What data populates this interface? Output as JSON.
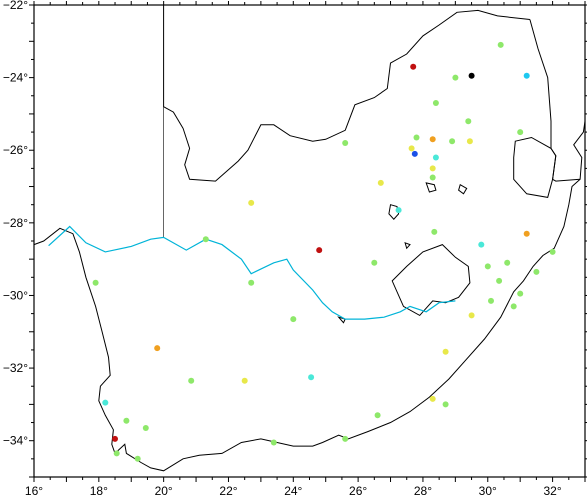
{
  "map": {
    "lon_range": [
      16,
      33
    ],
    "lat_range": [
      -35,
      -22
    ],
    "x_ticks": [
      {
        "value": 16,
        "label": "16°"
      },
      {
        "value": 18,
        "label": "18°"
      },
      {
        "value": 20,
        "label": "20°"
      },
      {
        "value": 22,
        "label": "22°"
      },
      {
        "value": 24,
        "label": "24°"
      },
      {
        "value": 26,
        "label": "26°"
      },
      {
        "value": 28,
        "label": "28°"
      },
      {
        "value": 30,
        "label": "30°"
      },
      {
        "value": 32,
        "label": "32°"
      }
    ],
    "y_ticks": [
      {
        "value": -22,
        "label": "−22°"
      },
      {
        "value": -24,
        "label": "−24°"
      },
      {
        "value": -26,
        "label": "−26°"
      },
      {
        "value": -28,
        "label": "−28°"
      },
      {
        "value": -30,
        "label": "−30°"
      },
      {
        "value": -32,
        "label": "−32°"
      },
      {
        "value": -34,
        "label": "−34°"
      }
    ],
    "colors": {
      "yellow": "#e8e84a",
      "lightgreen": "#8ee86a",
      "cyan": "#4ae8d8",
      "skyblue": "#1ec8f0",
      "orange": "#f0a020",
      "red": "#c01010",
      "blue": "#1a50e8",
      "black": "#000000",
      "river": "#00b4d8"
    },
    "stations": [
      {
        "lon": 27.7,
        "lat": -23.7,
        "c": "red"
      },
      {
        "lon": 29.5,
        "lat": -23.95,
        "c": "black"
      },
      {
        "lon": 30.4,
        "lat": -23.1,
        "c": "lightgreen"
      },
      {
        "lon": 31.2,
        "lat": -23.95,
        "c": "skyblue"
      },
      {
        "lon": 29.0,
        "lat": -24.0,
        "c": "lightgreen"
      },
      {
        "lon": 28.4,
        "lat": -24.7,
        "c": "lightgreen"
      },
      {
        "lon": 29.4,
        "lat": -25.2,
        "c": "lightgreen"
      },
      {
        "lon": 31.0,
        "lat": -25.5,
        "c": "lightgreen"
      },
      {
        "lon": 27.8,
        "lat": -25.65,
        "c": "lightgreen"
      },
      {
        "lon": 28.3,
        "lat": -25.7,
        "c": "orange"
      },
      {
        "lon": 28.9,
        "lat": -25.75,
        "c": "lightgreen"
      },
      {
        "lon": 29.45,
        "lat": -25.75,
        "c": "yellow"
      },
      {
        "lon": 27.65,
        "lat": -25.95,
        "c": "yellow"
      },
      {
        "lon": 27.75,
        "lat": -26.1,
        "c": "blue"
      },
      {
        "lon": 28.4,
        "lat": -26.2,
        "c": "cyan"
      },
      {
        "lon": 25.6,
        "lat": -25.8,
        "c": "lightgreen"
      },
      {
        "lon": 28.3,
        "lat": -26.5,
        "c": "yellow"
      },
      {
        "lon": 26.7,
        "lat": -26.9,
        "c": "yellow"
      },
      {
        "lon": 28.3,
        "lat": -26.75,
        "c": "lightgreen"
      },
      {
        "lon": 22.7,
        "lat": -27.45,
        "c": "yellow"
      },
      {
        "lon": 27.25,
        "lat": -27.65,
        "c": "cyan"
      },
      {
        "lon": 28.35,
        "lat": -28.25,
        "c": "lightgreen"
      },
      {
        "lon": 31.2,
        "lat": -28.3,
        "c": "orange"
      },
      {
        "lon": 29.8,
        "lat": -28.6,
        "c": "cyan"
      },
      {
        "lon": 24.8,
        "lat": -28.75,
        "c": "red"
      },
      {
        "lon": 32.0,
        "lat": -28.8,
        "c": "lightgreen"
      },
      {
        "lon": 21.3,
        "lat": -28.45,
        "c": "lightgreen"
      },
      {
        "lon": 26.5,
        "lat": -29.1,
        "c": "lightgreen"
      },
      {
        "lon": 30.6,
        "lat": -29.1,
        "c": "lightgreen"
      },
      {
        "lon": 30.0,
        "lat": -29.2,
        "c": "lightgreen"
      },
      {
        "lon": 31.5,
        "lat": -29.35,
        "c": "lightgreen"
      },
      {
        "lon": 17.9,
        "lat": -29.65,
        "c": "lightgreen"
      },
      {
        "lon": 22.7,
        "lat": -29.65,
        "c": "lightgreen"
      },
      {
        "lon": 30.35,
        "lat": -29.6,
        "c": "lightgreen"
      },
      {
        "lon": 31.0,
        "lat": -29.95,
        "c": "lightgreen"
      },
      {
        "lon": 30.1,
        "lat": -30.15,
        "c": "lightgreen"
      },
      {
        "lon": 30.8,
        "lat": -30.3,
        "c": "lightgreen"
      },
      {
        "lon": 29.5,
        "lat": -30.55,
        "c": "yellow"
      },
      {
        "lon": 24.0,
        "lat": -30.65,
        "c": "lightgreen"
      },
      {
        "lon": 19.8,
        "lat": -31.45,
        "c": "orange"
      },
      {
        "lon": 28.7,
        "lat": -31.55,
        "c": "yellow"
      },
      {
        "lon": 20.85,
        "lat": -32.35,
        "c": "lightgreen"
      },
      {
        "lon": 22.5,
        "lat": -32.35,
        "c": "yellow"
      },
      {
        "lon": 24.55,
        "lat": -32.25,
        "c": "cyan"
      },
      {
        "lon": 28.3,
        "lat": -32.85,
        "c": "yellow"
      },
      {
        "lon": 28.7,
        "lat": -33.0,
        "c": "lightgreen"
      },
      {
        "lon": 18.2,
        "lat": -32.95,
        "c": "cyan"
      },
      {
        "lon": 18.85,
        "lat": -33.45,
        "c": "lightgreen"
      },
      {
        "lon": 19.45,
        "lat": -33.65,
        "c": "lightgreen"
      },
      {
        "lon": 26.6,
        "lat": -33.3,
        "c": "lightgreen"
      },
      {
        "lon": 18.5,
        "lat": -33.95,
        "c": "red"
      },
      {
        "lon": 23.4,
        "lat": -34.05,
        "c": "lightgreen"
      },
      {
        "lon": 25.6,
        "lat": -33.95,
        "c": "lightgreen"
      },
      {
        "lon": 18.55,
        "lat": -34.35,
        "c": "lightgreen"
      },
      {
        "lon": 19.2,
        "lat": -34.5,
        "c": "lightgreen"
      }
    ],
    "coastline": [
      [
        16.0,
        -28.6
      ],
      [
        16.3,
        -28.5
      ],
      [
        16.8,
        -28.15
      ],
      [
        17.2,
        -28.3
      ],
      [
        17.4,
        -28.8
      ],
      [
        17.6,
        -29.5
      ],
      [
        17.9,
        -30.3
      ],
      [
        18.1,
        -31.0
      ],
      [
        18.3,
        -31.7
      ],
      [
        18.35,
        -32.2
      ],
      [
        18.05,
        -32.5
      ],
      [
        18.0,
        -32.9
      ],
      [
        18.2,
        -33.3
      ],
      [
        18.45,
        -33.7
      ],
      [
        18.4,
        -34.1
      ],
      [
        18.5,
        -34.35
      ],
      [
        18.8,
        -34.1
      ],
      [
        18.85,
        -34.35
      ],
      [
        19.3,
        -34.6
      ],
      [
        19.6,
        -34.75
      ],
      [
        20.0,
        -34.83
      ],
      [
        20.6,
        -34.5
      ],
      [
        21.1,
        -34.4
      ],
      [
        21.8,
        -34.35
      ],
      [
        22.4,
        -34.05
      ],
      [
        23.0,
        -33.95
      ],
      [
        23.5,
        -34.05
      ],
      [
        24.0,
        -34.15
      ],
      [
        24.6,
        -34.15
      ],
      [
        24.9,
        -34.05
      ],
      [
        25.4,
        -33.85
      ],
      [
        25.7,
        -33.95
      ],
      [
        26.3,
        -33.75
      ],
      [
        27.0,
        -33.5
      ],
      [
        27.6,
        -33.2
      ],
      [
        28.2,
        -32.8
      ],
      [
        28.8,
        -32.3
      ],
      [
        29.3,
        -31.8
      ],
      [
        29.9,
        -31.2
      ],
      [
        30.4,
        -30.6
      ],
      [
        30.8,
        -29.9
      ],
      [
        31.1,
        -29.6
      ],
      [
        31.4,
        -29.2
      ],
      [
        31.7,
        -28.9
      ],
      [
        32.05,
        -28.7
      ],
      [
        32.35,
        -28.1
      ],
      [
        32.5,
        -27.5
      ],
      [
        32.6,
        -27.0
      ],
      [
        32.85,
        -26.8
      ],
      [
        32.9,
        -26.2
      ],
      [
        32.65,
        -25.85
      ],
      [
        32.95,
        -25.5
      ],
      [
        33.0,
        -25.2
      ]
    ],
    "border_north": [
      [
        20.0,
        -22.0
      ],
      [
        20.0,
        -24.8
      ],
      [
        20.3,
        -24.95
      ],
      [
        20.6,
        -25.4
      ],
      [
        20.8,
        -25.95
      ],
      [
        20.65,
        -26.4
      ],
      [
        20.8,
        -26.8
      ],
      [
        21.6,
        -26.85
      ],
      [
        22.3,
        -26.3
      ],
      [
        22.6,
        -26.0
      ],
      [
        23.0,
        -25.3
      ],
      [
        23.4,
        -25.3
      ],
      [
        23.9,
        -25.6
      ],
      [
        24.6,
        -25.75
      ],
      [
        25.0,
        -25.7
      ],
      [
        25.6,
        -25.45
      ],
      [
        25.9,
        -24.75
      ],
      [
        26.5,
        -24.55
      ],
      [
        26.9,
        -24.3
      ],
      [
        27.0,
        -23.6
      ],
      [
        27.5,
        -23.35
      ],
      [
        28.0,
        -22.85
      ],
      [
        28.5,
        -22.55
      ],
      [
        29.05,
        -22.2
      ],
      [
        29.7,
        -22.15
      ],
      [
        30.3,
        -22.3
      ],
      [
        31.3,
        -22.4
      ]
    ],
    "border_namibia": [
      [
        16.0,
        -22.0
      ],
      [
        16.0,
        -28.6
      ]
    ],
    "border_namibia_sa": [
      [
        20.0,
        -24.8
      ],
      [
        20.0,
        -28.4
      ]
    ],
    "border_mozambique": [
      [
        31.3,
        -22.4
      ],
      [
        31.55,
        -23.2
      ],
      [
        31.85,
        -24.0
      ],
      [
        31.95,
        -25.2
      ],
      [
        31.95,
        -25.95
      ],
      [
        32.1,
        -26.15
      ],
      [
        32.0,
        -26.8
      ],
      [
        32.1,
        -26.85
      ],
      [
        32.85,
        -26.8
      ]
    ],
    "swaziland": [
      [
        30.85,
        -25.75
      ],
      [
        31.35,
        -25.65
      ],
      [
        31.95,
        -25.95
      ],
      [
        32.1,
        -26.15
      ],
      [
        32.0,
        -26.8
      ],
      [
        31.85,
        -27.3
      ],
      [
        31.2,
        -27.2
      ],
      [
        30.8,
        -26.8
      ],
      [
        30.8,
        -26.2
      ],
      [
        30.85,
        -25.75
      ]
    ],
    "lesotho": [
      [
        28.6,
        -28.6
      ],
      [
        29.0,
        -28.95
      ],
      [
        29.4,
        -29.2
      ],
      [
        29.45,
        -29.65
      ],
      [
        29.1,
        -30.05
      ],
      [
        28.7,
        -30.2
      ],
      [
        28.3,
        -30.15
      ],
      [
        27.9,
        -30.55
      ],
      [
        27.4,
        -30.3
      ],
      [
        27.05,
        -29.6
      ],
      [
        27.5,
        -29.2
      ],
      [
        28.0,
        -28.8
      ],
      [
        28.6,
        -28.6
      ]
    ],
    "orange_river": [
      [
        16.45,
        -28.63
      ],
      [
        17.1,
        -28.1
      ],
      [
        17.6,
        -28.55
      ],
      [
        18.2,
        -28.8
      ],
      [
        19.0,
        -28.65
      ],
      [
        19.6,
        -28.45
      ],
      [
        20.0,
        -28.4
      ],
      [
        20.7,
        -28.75
      ],
      [
        21.3,
        -28.45
      ],
      [
        21.8,
        -28.6
      ],
      [
        22.4,
        -29.0
      ],
      [
        22.7,
        -29.4
      ],
      [
        23.4,
        -29.1
      ],
      [
        23.8,
        -29.0
      ],
      [
        24.0,
        -29.3
      ],
      [
        24.6,
        -29.85
      ],
      [
        24.9,
        -30.2
      ],
      [
        25.2,
        -30.45
      ],
      [
        25.6,
        -30.65
      ],
      [
        26.2,
        -30.65
      ],
      [
        26.8,
        -30.6
      ],
      [
        27.3,
        -30.45
      ],
      [
        27.6,
        -30.3
      ],
      [
        28.1,
        -30.45
      ],
      [
        28.5,
        -30.2
      ],
      [
        29.0,
        -30.15
      ]
    ],
    "islands": [
      [
        [
          27.0,
          -27.5
        ],
        [
          27.2,
          -27.55
        ],
        [
          27.25,
          -27.75
        ],
        [
          27.1,
          -27.9
        ],
        [
          26.95,
          -27.75
        ],
        [
          27.0,
          -27.5
        ]
      ],
      [
        [
          28.1,
          -26.9
        ],
        [
          28.35,
          -26.95
        ],
        [
          28.4,
          -27.1
        ],
        [
          28.2,
          -27.15
        ],
        [
          28.1,
          -26.9
        ]
      ],
      [
        [
          29.15,
          -26.95
        ],
        [
          29.35,
          -27.05
        ],
        [
          29.25,
          -27.2
        ],
        [
          29.1,
          -27.1
        ],
        [
          29.15,
          -26.95
        ]
      ],
      [
        [
          27.45,
          -28.55
        ],
        [
          27.6,
          -28.6
        ],
        [
          27.5,
          -28.7
        ],
        [
          27.45,
          -28.55
        ]
      ],
      [
        [
          25.4,
          -30.6
        ],
        [
          25.6,
          -30.65
        ],
        [
          25.55,
          -30.75
        ],
        [
          25.4,
          -30.6
        ]
      ]
    ]
  }
}
